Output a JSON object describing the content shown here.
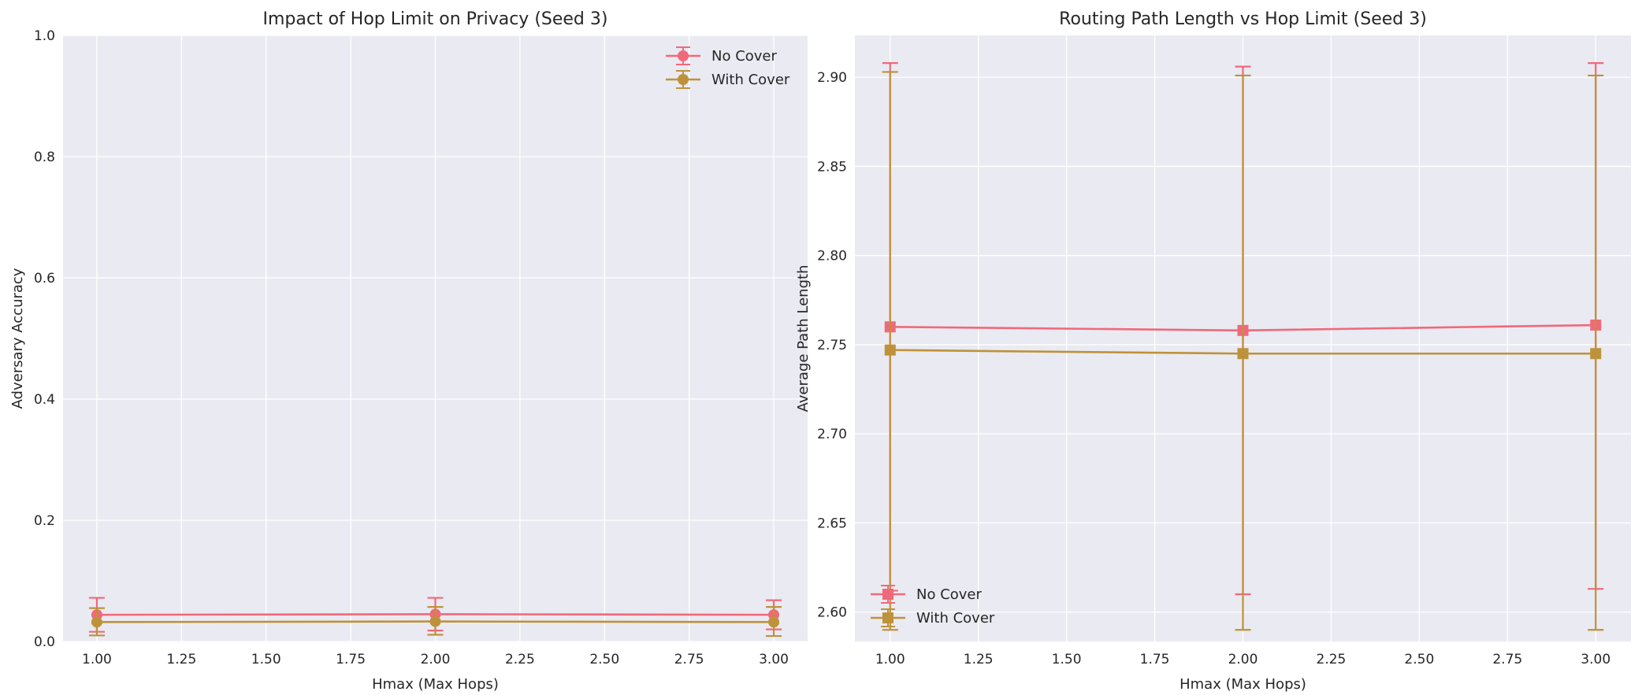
{
  "colors": {
    "no_cover": "#f0697a",
    "with_cover": "#bd923a",
    "plot_bg": "#eaeaf2",
    "grid": "#ffffff",
    "text": "#262626"
  },
  "chart_data": [
    {
      "type": "line",
      "marker": "circle",
      "title": "Impact of Hop Limit on Privacy (Seed 3)",
      "xlabel": "Hmax (Max Hops)",
      "ylabel": "Adversary Accuracy",
      "xlim": [
        0.9,
        3.1
      ],
      "ylim": [
        0.0,
        1.0
      ],
      "xticks": [
        "1.00",
        "1.25",
        "1.50",
        "1.75",
        "2.00",
        "2.25",
        "2.50",
        "2.75",
        "3.00"
      ],
      "yticks": [
        "0.0",
        "0.2",
        "0.4",
        "0.6",
        "0.8",
        "1.0"
      ],
      "grid": true,
      "legend_position": "top-right",
      "series": [
        {
          "name": "No Cover",
          "x": [
            1.0,
            2.0,
            3.0
          ],
          "y": [
            0.044,
            0.045,
            0.044
          ],
          "yerr_low": [
            0.016,
            0.018,
            0.02
          ],
          "yerr_high": [
            0.072,
            0.072,
            0.068
          ]
        },
        {
          "name": "With Cover",
          "x": [
            1.0,
            2.0,
            3.0
          ],
          "y": [
            0.032,
            0.033,
            0.032
          ],
          "yerr_low": [
            0.01,
            0.011,
            0.009
          ],
          "yerr_high": [
            0.055,
            0.057,
            0.057
          ]
        }
      ]
    },
    {
      "type": "line",
      "marker": "square",
      "title": "Routing Path Length vs Hop Limit (Seed 3)",
      "xlabel": "Hmax (Max Hops)",
      "ylabel": "Average Path Length",
      "xlim": [
        0.9,
        3.1
      ],
      "ylim": [
        2.5835,
        2.9235
      ],
      "xticks": [
        "1.00",
        "1.25",
        "1.50",
        "1.75",
        "2.00",
        "2.25",
        "2.50",
        "2.75",
        "3.00"
      ],
      "yticks": [
        "2.60",
        "2.65",
        "2.70",
        "2.75",
        "2.80",
        "2.85",
        "2.90"
      ],
      "grid": true,
      "legend_position": "bottom-left",
      "series": [
        {
          "name": "No Cover",
          "x": [
            1.0,
            2.0,
            3.0
          ],
          "y": [
            2.76,
            2.758,
            2.761
          ],
          "yerr_low": [
            2.612,
            2.61,
            2.613
          ],
          "yerr_high": [
            2.908,
            2.906,
            2.908
          ]
        },
        {
          "name": "With Cover",
          "x": [
            1.0,
            2.0,
            3.0
          ],
          "y": [
            2.747,
            2.745,
            2.745
          ],
          "yerr_low": [
            2.59,
            2.59,
            2.59
          ],
          "yerr_high": [
            2.903,
            2.901,
            2.901
          ]
        }
      ]
    }
  ]
}
